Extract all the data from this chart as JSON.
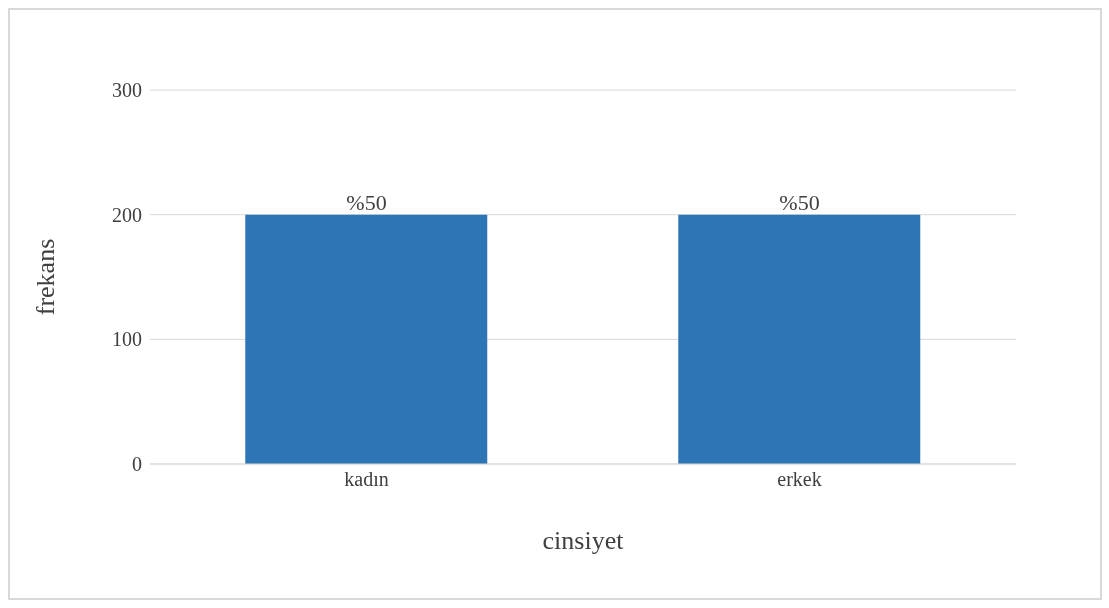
{
  "chart_data": {
    "type": "bar",
    "xlabel": "cinsiyet",
    "ylabel": "frekans",
    "categories": [
      "kadın",
      "erkek"
    ],
    "values": [
      200,
      200
    ],
    "color": "#2e75b6",
    "annotations": [
      {
        "text": "%50",
        "x": "kadın",
        "y": 200
      },
      {
        "text": "%50",
        "x": "erkek",
        "y": 200
      }
    ],
    "ylim": [
      0,
      300
    ],
    "yticks": [
      0,
      100,
      200,
      300
    ],
    "grid": "y"
  }
}
